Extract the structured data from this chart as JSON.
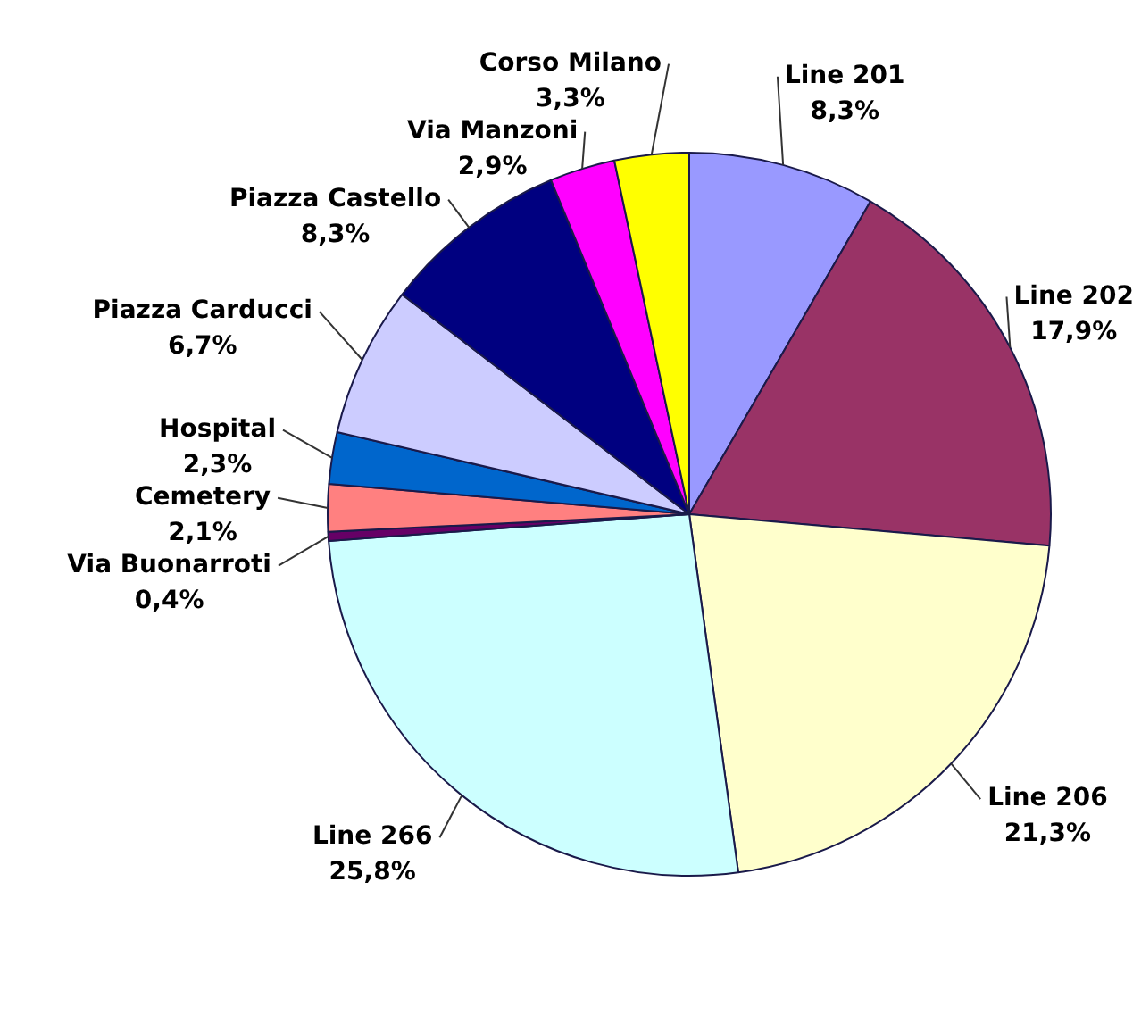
{
  "chart_data": {
    "type": "pie",
    "categories": [
      "Line 201",
      "Line 202",
      "Line 206",
      "Line 266",
      "Via Buonarroti",
      "Cemetery",
      "Hospital",
      "Piazza Carducci",
      "Piazza Castello",
      "Via Manzoni",
      "Corso Milano"
    ],
    "values": [
      8.3,
      17.9,
      21.3,
      25.8,
      0.4,
      2.1,
      2.3,
      6.7,
      8.3,
      2.9,
      3.3
    ],
    "value_labels": [
      "8,3%",
      "17,9%",
      "21,3%",
      "25,8%",
      "0,4%",
      "2,1%",
      "2,3%",
      "6,7%",
      "8,3%",
      "2,9%",
      "3,3%"
    ],
    "colors": [
      "#9999ff",
      "#993366",
      "#ffffcc",
      "#ccffff",
      "#660066",
      "#ff8080",
      "#0066cc",
      "#ccccff",
      "#000080",
      "#ff00ff",
      "#ffff00"
    ],
    "legend": false
  }
}
